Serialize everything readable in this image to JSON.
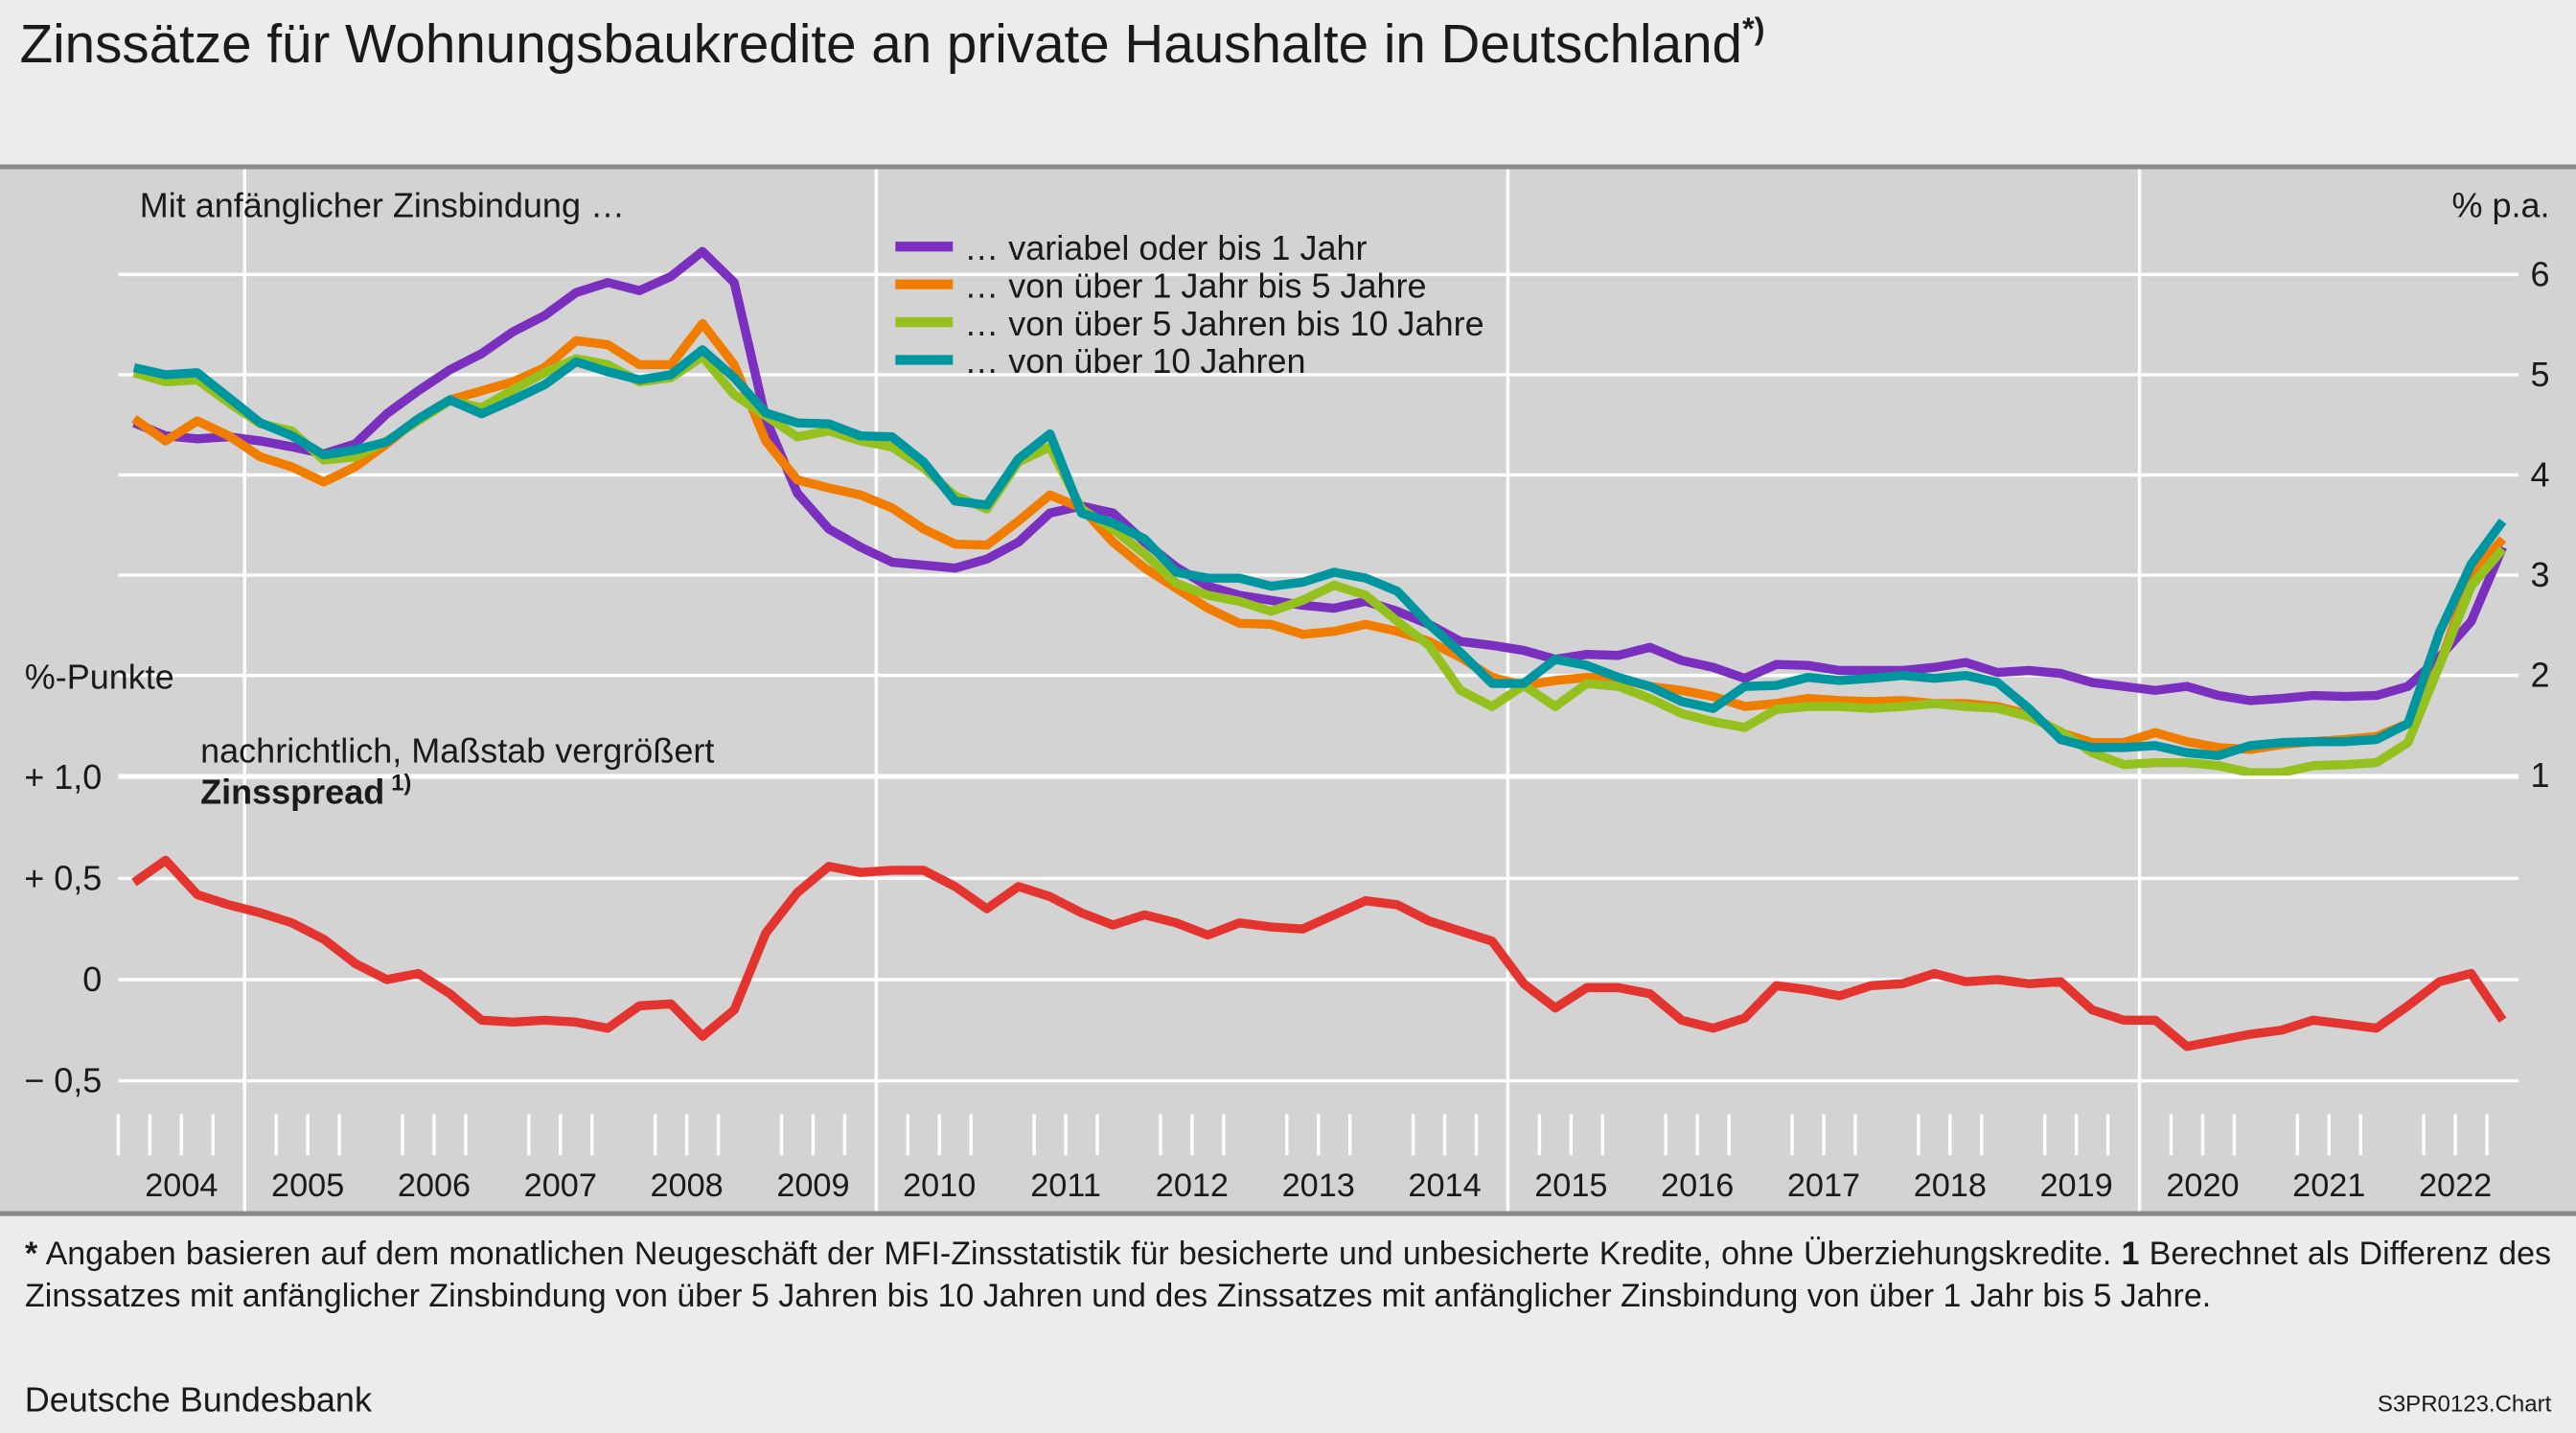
{
  "title": "Zinssätze für Wohnungsbaukredite an private Haushalte in Deutschland",
  "title_note": "*)",
  "chart_data": [
    {
      "type": "line",
      "header": "Mit anfänglicher Zinsbindung …",
      "unit_label": "% p.a.",
      "x": [
        2004.125,
        2004.375,
        2004.625,
        2004.875,
        2005.125,
        2005.375,
        2005.625,
        2005.875,
        2006.125,
        2006.375,
        2006.625,
        2006.875,
        2007.125,
        2007.375,
        2007.625,
        2007.875,
        2008.125,
        2008.375,
        2008.625,
        2008.875,
        2009.125,
        2009.375,
        2009.625,
        2009.875,
        2010.125,
        2010.375,
        2010.625,
        2010.875,
        2011.125,
        2011.375,
        2011.625,
        2011.875,
        2012.125,
        2012.375,
        2012.625,
        2012.875,
        2013.125,
        2013.375,
        2013.625,
        2013.875,
        2014.125,
        2014.375,
        2014.625,
        2014.875,
        2015.125,
        2015.375,
        2015.625,
        2015.875,
        2016.125,
        2016.375,
        2016.625,
        2016.875,
        2017.125,
        2017.375,
        2017.625,
        2017.875,
        2018.125,
        2018.375,
        2018.625,
        2018.875,
        2019.125,
        2019.375,
        2019.625,
        2019.875,
        2020.125,
        2020.375,
        2020.625,
        2020.875,
        2021.125,
        2021.375,
        2021.625,
        2021.875,
        2022.125,
        2022.375,
        2022.625,
        2022.875
      ],
      "xlim": [
        2004,
        2023
      ],
      "vgrid": [
        2005,
        2010,
        2015,
        2020
      ],
      "ylim": [
        1,
        7
      ],
      "yticks": [
        1,
        2,
        3,
        4,
        5,
        6
      ],
      "grid": true,
      "legend": "top",
      "series": [
        {
          "name": "… variabel oder bis 1 Jahr",
          "color": "#7b2fbe",
          "values": [
            4.52,
            4.39,
            4.36,
            4.38,
            4.34,
            4.28,
            4.21,
            4.31,
            4.61,
            4.84,
            5.05,
            5.21,
            5.43,
            5.59,
            5.82,
            5.92,
            5.84,
            5.98,
            6.23,
            5.92,
            4.56,
            3.82,
            3.46,
            3.28,
            3.13,
            3.1,
            3.07,
            3.16,
            3.33,
            3.62,
            3.69,
            3.62,
            3.33,
            3.08,
            2.89,
            2.8,
            2.75,
            2.7,
            2.67,
            2.74,
            2.64,
            2.51,
            2.34,
            2.3,
            2.25,
            2.16,
            2.21,
            2.2,
            2.28,
            2.15,
            2.08,
            1.97,
            2.11,
            2.1,
            2.05,
            2.05,
            2.05,
            2.08,
            2.13,
            2.03,
            2.05,
            2.02,
            1.93,
            1.89,
            1.85,
            1.89,
            1.8,
            1.75,
            1.77,
            1.8,
            1.79,
            1.8,
            1.89,
            2.18,
            2.54,
            3.28
          ]
        },
        {
          "name": "… von über 1 Jahr bis 5 Jahre",
          "color": "#f07d00",
          "values": [
            4.56,
            4.34,
            4.54,
            4.39,
            4.18,
            4.08,
            3.93,
            4.08,
            4.31,
            4.56,
            4.75,
            4.84,
            4.93,
            5.07,
            5.34,
            5.3,
            5.1,
            5.1,
            5.51,
            5.1,
            4.34,
            3.95,
            3.87,
            3.8,
            3.67,
            3.46,
            3.31,
            3.3,
            3.54,
            3.8,
            3.67,
            3.33,
            3.07,
            2.87,
            2.67,
            2.52,
            2.51,
            2.41,
            2.44,
            2.51,
            2.44,
            2.34,
            2.18,
            1.98,
            1.9,
            1.95,
            1.98,
            1.97,
            1.89,
            1.85,
            1.79,
            1.69,
            1.72,
            1.77,
            1.75,
            1.74,
            1.75,
            1.72,
            1.72,
            1.69,
            1.61,
            1.43,
            1.33,
            1.33,
            1.43,
            1.34,
            1.28,
            1.26,
            1.31,
            1.34,
            1.36,
            1.39,
            1.52,
            2.1,
            3.0,
            3.36
          ]
        },
        {
          "name": "… von über 5 Jahren bis 10 Jahre",
          "color": "#95c11f",
          "values": [
            5.02,
            4.93,
            4.95,
            4.72,
            4.51,
            4.44,
            4.15,
            4.18,
            4.34,
            4.54,
            4.74,
            4.67,
            4.85,
            5.02,
            5.16,
            5.1,
            4.93,
            4.97,
            5.18,
            4.8,
            4.59,
            4.38,
            4.44,
            4.34,
            4.28,
            4.07,
            3.79,
            3.66,
            4.13,
            4.28,
            3.66,
            3.46,
            3.21,
            2.92,
            2.8,
            2.74,
            2.64,
            2.75,
            2.9,
            2.8,
            2.54,
            2.3,
            1.85,
            1.69,
            1.9,
            1.69,
            1.92,
            1.89,
            1.77,
            1.62,
            1.54,
            1.48,
            1.66,
            1.69,
            1.69,
            1.67,
            1.69,
            1.72,
            1.69,
            1.67,
            1.59,
            1.44,
            1.23,
            1.11,
            1.13,
            1.13,
            1.1,
            1.03,
            1.03,
            1.1,
            1.11,
            1.13,
            1.33,
            2.1,
            2.89,
            3.26
          ]
        },
        {
          "name": "… von über 10 Jahren",
          "color": "#0096a0",
          "values": [
            5.07,
            5.0,
            5.02,
            4.77,
            4.52,
            4.39,
            4.2,
            4.25,
            4.33,
            4.56,
            4.75,
            4.61,
            4.75,
            4.9,
            5.13,
            5.03,
            4.95,
            5.0,
            5.25,
            4.97,
            4.62,
            4.52,
            4.51,
            4.39,
            4.38,
            4.13,
            3.74,
            3.7,
            4.16,
            4.41,
            3.62,
            3.52,
            3.36,
            3.03,
            2.97,
            2.97,
            2.89,
            2.93,
            3.03,
            2.97,
            2.84,
            2.51,
            2.23,
            1.92,
            1.92,
            2.16,
            2.1,
            1.98,
            1.89,
            1.74,
            1.67,
            1.89,
            1.9,
            1.98,
            1.95,
            1.97,
            2.0,
            1.97,
            2.0,
            1.93,
            1.67,
            1.36,
            1.28,
            1.28,
            1.3,
            1.23,
            1.2,
            1.3,
            1.33,
            1.34,
            1.34,
            1.36,
            1.52,
            2.43,
            3.11,
            3.54
          ]
        }
      ]
    },
    {
      "type": "line",
      "unit_label": "%-Punkte",
      "subtitle": "nachrichtlich, Maßstab vergrößert",
      "title": "Zinsspread",
      "title_note": "1)",
      "x": [
        2004.125,
        2004.375,
        2004.625,
        2004.875,
        2005.125,
        2005.375,
        2005.625,
        2005.875,
        2006.125,
        2006.375,
        2006.625,
        2006.875,
        2007.125,
        2007.375,
        2007.625,
        2007.875,
        2008.125,
        2008.375,
        2008.625,
        2008.875,
        2009.125,
        2009.375,
        2009.625,
        2009.875,
        2010.125,
        2010.375,
        2010.625,
        2010.875,
        2011.125,
        2011.375,
        2011.625,
        2011.875,
        2012.125,
        2012.375,
        2012.625,
        2012.875,
        2013.125,
        2013.375,
        2013.625,
        2013.875,
        2014.125,
        2014.375,
        2014.625,
        2014.875,
        2015.125,
        2015.375,
        2015.625,
        2015.875,
        2016.125,
        2016.375,
        2016.625,
        2016.875,
        2017.125,
        2017.375,
        2017.625,
        2017.875,
        2018.125,
        2018.375,
        2018.625,
        2018.875,
        2019.125,
        2019.375,
        2019.625,
        2019.875,
        2020.125,
        2020.375,
        2020.625,
        2020.875,
        2021.125,
        2021.375,
        2021.625,
        2021.875,
        2022.125,
        2022.375,
        2022.625,
        2022.875
      ],
      "xlim": [
        2004,
        2023
      ],
      "xticks": [
        {
          "value": 2004.5,
          "label": "2004"
        },
        {
          "value": 2005.5,
          "label": "2005"
        },
        {
          "value": 2006.5,
          "label": "2006"
        },
        {
          "value": 2007.5,
          "label": "2007"
        },
        {
          "value": 2008.5,
          "label": "2008"
        },
        {
          "value": 2009.5,
          "label": "2009"
        },
        {
          "value": 2010.5,
          "label": "2010"
        },
        {
          "value": 2011.5,
          "label": "2011"
        },
        {
          "value": 2012.5,
          "label": "2012"
        },
        {
          "value": 2013.5,
          "label": "2013"
        },
        {
          "value": 2014.5,
          "label": "2014"
        },
        {
          "value": 2015.5,
          "label": "2015"
        },
        {
          "value": 2016.5,
          "label": "2016"
        },
        {
          "value": 2017.5,
          "label": "2017"
        },
        {
          "value": 2018.5,
          "label": "2018"
        },
        {
          "value": 2019.5,
          "label": "2019"
        },
        {
          "value": 2020.5,
          "label": "2020"
        },
        {
          "value": 2021.5,
          "label": "2021"
        },
        {
          "value": 2022.5,
          "label": "2022"
        }
      ],
      "ylim": [
        -0.6,
        1.0
      ],
      "yticks": [
        {
          "value": -0.5,
          "label": "− 0,5"
        },
        0,
        {
          "value": 0.5,
          "label": "+ 0,5"
        },
        {
          "value": 1.0,
          "label": "+ 1,0"
        }
      ],
      "grid": true,
      "series": [
        {
          "color": "#e3342f",
          "values": [
            0.48,
            0.59,
            0.42,
            0.37,
            0.33,
            0.28,
            0.2,
            0.08,
            0.0,
            0.03,
            -0.07,
            -0.2,
            -0.21,
            -0.2,
            -0.21,
            -0.24,
            -0.13,
            -0.12,
            -0.28,
            -0.15,
            0.23,
            0.43,
            0.56,
            0.53,
            0.54,
            0.54,
            0.46,
            0.35,
            0.46,
            0.41,
            0.33,
            0.27,
            0.32,
            0.28,
            0.22,
            0.28,
            0.26,
            0.25,
            0.32,
            0.39,
            0.37,
            0.29,
            0.24,
            0.19,
            -0.02,
            -0.14,
            -0.04,
            -0.04,
            -0.07,
            -0.2,
            -0.24,
            -0.19,
            -0.03,
            -0.05,
            -0.08,
            -0.03,
            -0.02,
            0.03,
            -0.01,
            0.0,
            -0.02,
            -0.01,
            -0.15,
            -0.2,
            -0.2,
            -0.33,
            -0.3,
            -0.27,
            -0.25,
            -0.2,
            -0.22,
            -0.24,
            -0.13,
            -0.01,
            0.03,
            -0.2
          ]
        }
      ]
    }
  ],
  "footnotes": [
    {
      "marker": "*",
      "text": "Angaben basieren auf dem monatlichen Neugeschäft der MFI-Zinsstatistik für besicherte und unbesicherte Kredite, ohne Überziehungskredite."
    },
    {
      "marker": "1",
      "text": "Berechnet als Differenz des Zinssatzes mit anfänglicher Zinsbindung von über 5 Jahren bis 10 Jahren und des Zinssatzes mit anfänglicher Zinsbindung von über 1 Jahr bis 5 Jahre."
    }
  ],
  "source": "Deutsche Bundesbank",
  "chart_id": "S3PR0123.Chart"
}
